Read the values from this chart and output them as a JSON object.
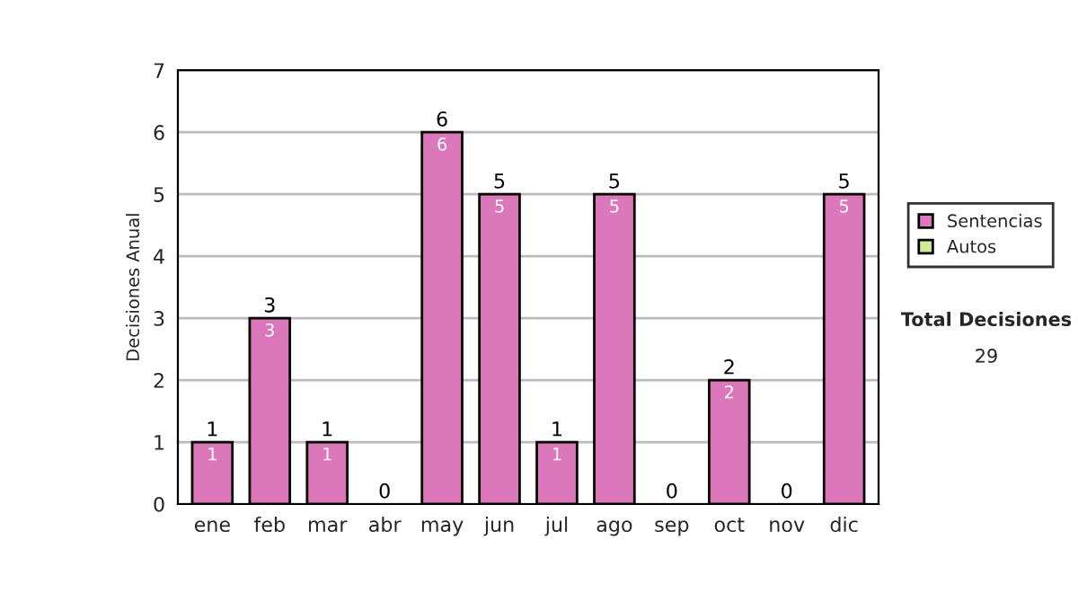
{
  "chart_data": {
    "type": "bar",
    "stacked": true,
    "ylabel": "Decisiones Anual",
    "categories": [
      "ene",
      "feb",
      "mar",
      "abr",
      "may",
      "jun",
      "jul",
      "ago",
      "sep",
      "oct",
      "nov",
      "dic"
    ],
    "series": [
      {
        "name": "Sentencias",
        "color": "#dd77bb",
        "values": [
          1,
          3,
          1,
          0,
          6,
          5,
          1,
          5,
          0,
          2,
          0,
          5
        ],
        "value_labels": [
          "1",
          "3",
          "1",
          null,
          "6",
          "5",
          "1",
          "5",
          null,
          "2",
          null,
          "5"
        ]
      },
      {
        "name": "Autos",
        "color": "#ccee99",
        "values": [
          0,
          0,
          0,
          0,
          0,
          0,
          0,
          0,
          0,
          0,
          0,
          0
        ]
      }
    ],
    "totals": [
      "1",
      "3",
      "1",
      "0",
      "6",
      "5",
      "1",
      "5",
      "0",
      "2",
      "0",
      "5"
    ],
    "ylim": [
      0,
      7
    ],
    "yticks": [
      0,
      1,
      2,
      3,
      4,
      5,
      6,
      7
    ],
    "grid": "y",
    "legend": "right",
    "annotations": [
      "Total Decisiones",
      "29"
    ]
  }
}
